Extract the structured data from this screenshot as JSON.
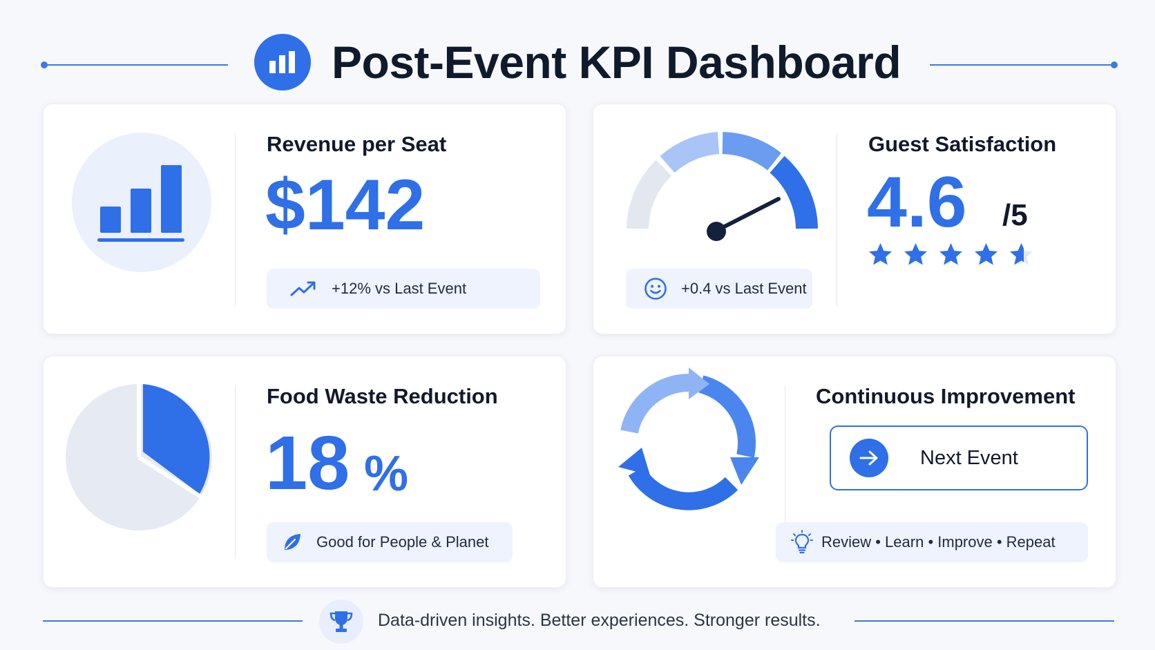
{
  "header": {
    "title": "Post-Event KPI Dashboard",
    "icon": "bar-chart-icon"
  },
  "revenue": {
    "title": "Revenue per Seat",
    "value": "$142",
    "delta": "+12% vs Last Event",
    "icon": "bar-chart-icon",
    "delta_icon": "trending-up-icon"
  },
  "satisfaction": {
    "title": "Guest Satisfaction",
    "value": "4.6",
    "scale": "/5",
    "rating": 4.6,
    "rating_max": 5,
    "delta": "+0.4 vs Last Event",
    "icon": "gauge-icon",
    "delta_icon": "smiley-icon"
  },
  "food_waste": {
    "title": "Food Waste Reduction",
    "value": "18",
    "unit": "%",
    "tagline": "Good for People & Planet",
    "icon": "pie-chart-icon",
    "tagline_icon": "leaf-icon"
  },
  "improvement": {
    "title": "Continuous Improvement",
    "button_label": "Next Event",
    "cycle": "Review • Learn • Improve • Repeat",
    "icon": "cycle-arrows-icon",
    "cycle_icon": "lightbulb-icon"
  },
  "footer": {
    "text": "Data-driven insights. Better experiences. Stronger results.",
    "icon": "trophy-icon"
  },
  "colors": {
    "accent": "#2f6fe8",
    "accent_light": "#a9c5f7",
    "pill_bg": "#eef3fd",
    "neutral": "#e3e8f0"
  }
}
